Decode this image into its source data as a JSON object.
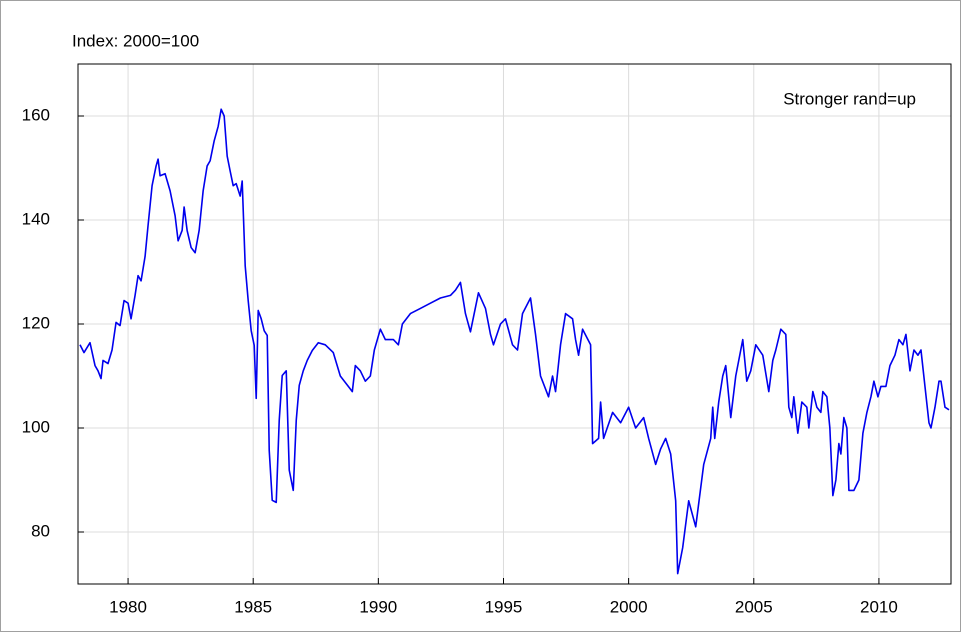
{
  "chart_data": {
    "type": "line",
    "title": "Index: 2000=100",
    "annotation": "Stronger rand=up",
    "color": "#0000ee",
    "grid": true,
    "xlim": [
      1978.0,
      2012.88
    ],
    "ylim": [
      70,
      170
    ],
    "xticks": [
      1980,
      1985,
      1990,
      1995,
      2000,
      2005,
      2010
    ],
    "yticks": [
      80,
      100,
      120,
      140,
      160
    ],
    "x": [
      1978.08,
      1978.24,
      1978.48,
      1978.68,
      1978.8,
      1978.92,
      1979.0,
      1979.2,
      1979.36,
      1979.52,
      1979.68,
      1979.84,
      1980.0,
      1980.12,
      1980.28,
      1980.4,
      1980.52,
      1980.68,
      1980.8,
      1980.96,
      1981.12,
      1981.2,
      1981.28,
      1981.48,
      1981.68,
      1981.88,
      1982.0,
      1982.16,
      1982.24,
      1982.36,
      1982.52,
      1982.68,
      1982.84,
      1983.0,
      1983.16,
      1983.28,
      1983.44,
      1983.6,
      1983.72,
      1983.84,
      1983.96,
      1984.08,
      1984.2,
      1984.32,
      1984.48,
      1984.56,
      1984.68,
      1984.8,
      1984.92,
      1985.04,
      1985.12,
      1985.2,
      1985.32,
      1985.44,
      1985.56,
      1985.64,
      1985.76,
      1985.92,
      1986.04,
      1986.16,
      1986.32,
      1986.44,
      1986.6,
      1986.72,
      1986.84,
      1987.0,
      1987.16,
      1987.36,
      1987.6,
      1987.88,
      1988.2,
      1988.48,
      1988.8,
      1988.96,
      1989.08,
      1989.28,
      1989.48,
      1989.68,
      1989.84,
      1990.08,
      1990.28,
      1990.6,
      1990.8,
      1990.96,
      1991.28,
      1991.68,
      1992.08,
      1992.48,
      1992.88,
      1993.08,
      1993.28,
      1993.48,
      1993.68,
      1994.0,
      1994.28,
      1994.48,
      1994.6,
      1994.88,
      1995.08,
      1995.36,
      1995.56,
      1995.76,
      1996.08,
      1996.28,
      1996.48,
      1996.8,
      1996.96,
      1997.08,
      1997.28,
      1997.48,
      1997.76,
      1997.88,
      1998.0,
      1998.16,
      1998.48,
      1998.56,
      1998.8,
      1998.88,
      1999.0,
      1999.36,
      1999.68,
      2000.0,
      2000.28,
      2000.6,
      2000.8,
      2001.08,
      2001.28,
      2001.48,
      2001.68,
      2001.88,
      2001.96,
      2002.16,
      2002.4,
      2002.68,
      2003.0,
      2003.28,
      2003.36,
      2003.44,
      2003.6,
      2003.76,
      2003.88,
      2004.08,
      2004.28,
      2004.56,
      2004.72,
      2004.88,
      2005.08,
      2005.36,
      2005.6,
      2005.76,
      2005.88,
      2006.08,
      2006.28,
      2006.4,
      2006.52,
      2006.6,
      2006.76,
      2006.92,
      2007.12,
      2007.2,
      2007.36,
      2007.52,
      2007.68,
      2007.76,
      2007.92,
      2008.04,
      2008.16,
      2008.28,
      2008.4,
      2008.48,
      2008.6,
      2008.72,
      2008.8,
      2009.0,
      2009.2,
      2009.36,
      2009.52,
      2009.68,
      2009.8,
      2009.96,
      2010.08,
      2010.28,
      2010.44,
      2010.64,
      2010.8,
      2010.96,
      2011.08,
      2011.24,
      2011.4,
      2011.56,
      2011.68,
      2011.84,
      2012.0,
      2012.08,
      2012.24,
      2012.4,
      2012.48,
      2012.64,
      2012.8
    ],
    "values": [
      116,
      114.5,
      116.4,
      112,
      111,
      109.5,
      113,
      112.4,
      115,
      120.3,
      119.7,
      124.5,
      124,
      121,
      125.5,
      129.3,
      128.3,
      133,
      139,
      146.6,
      150.4,
      151.7,
      148.5,
      148.9,
      145.6,
      140.8,
      136,
      138,
      142.5,
      138,
      134.7,
      133.7,
      138,
      145.6,
      150.4,
      151.4,
      155.2,
      158,
      161.3,
      160,
      152.3,
      149.4,
      146.6,
      147,
      144.6,
      147.5,
      131.2,
      124.5,
      118.7,
      115.9,
      105.7,
      122.6,
      121,
      118.7,
      117.8,
      95.7,
      86.1,
      85.7,
      101.5,
      110.1,
      111,
      91.9,
      88,
      101.5,
      108.2,
      111,
      113,
      114.9,
      116.4,
      116,
      114.5,
      110,
      108,
      107,
      112,
      111,
      109,
      110,
      115,
      119,
      117,
      117,
      116,
      120,
      122,
      123,
      124,
      125,
      125.5,
      126.5,
      128,
      122,
      118.5,
      126,
      123,
      118,
      116,
      120,
      121,
      116,
      115,
      122,
      125,
      118,
      110,
      106,
      110,
      107,
      116,
      122,
      121,
      117,
      114,
      119,
      116,
      97,
      98,
      105,
      98,
      103,
      101,
      104,
      100,
      102,
      98,
      93,
      96,
      98,
      95,
      86,
      72,
      77,
      86,
      81,
      93,
      98,
      104,
      98,
      105,
      110,
      112,
      102,
      110,
      117,
      109,
      111,
      116,
      114,
      107,
      113,
      115,
      119,
      118,
      104,
      102,
      106,
      99,
      105,
      104,
      100,
      107,
      104,
      103,
      107,
      106,
      100,
      87,
      90,
      97,
      95,
      102,
      100,
      88,
      88,
      90,
      99,
      103,
      106,
      109,
      106,
      108,
      108,
      112,
      114,
      117,
      116,
      118,
      111,
      115,
      114,
      115,
      108,
      101,
      100,
      104,
      109,
      109,
      104,
      103.5
    ]
  }
}
